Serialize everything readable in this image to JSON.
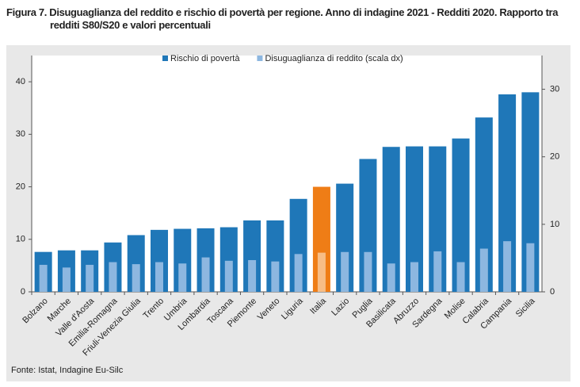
{
  "chart_data": {
    "type": "bar",
    "title": "Figura 7. Disuguaglianza del reddito e rischio di povertà per regione. Anno di indagine 2021 - Redditi 2020. Rapporto tra redditi S80/S20 e valori percentuali",
    "source": "Fonte: Istat, Indagine Eu-Silc",
    "categories": [
      "Bolzano",
      "Marche",
      "Valle d'Aosta",
      "Emilia-Romagna",
      "Friuli-Venezia Giulia",
      "Trento",
      "Umbria",
      "Lombardia",
      "Toscana",
      "Piemonte",
      "Veneto",
      "Liguria",
      "Italia",
      "Lazio",
      "Puglia",
      "Basilicata",
      "Abruzzo",
      "Sardegna",
      "Molise",
      "Calabria",
      "Campania",
      "Sicilia"
    ],
    "series": [
      {
        "name": "Rischio di povertà",
        "color": "#1f77b8",
        "colors": [
          "#1f77b8",
          "#1f77b8",
          "#1f77b8",
          "#1f77b8",
          "#1f77b8",
          "#1f77b8",
          "#1f77b8",
          "#1f77b8",
          "#1f77b8",
          "#1f77b8",
          "#1f77b8",
          "#1f77b8",
          "#ef7d16",
          "#1f77b8",
          "#1f77b8",
          "#1f77b8",
          "#1f77b8",
          "#1f77b8",
          "#1f77b8",
          "#1f77b8",
          "#1f77b8",
          "#1f77b8"
        ],
        "values": [
          7.6,
          7.9,
          7.9,
          9.4,
          10.8,
          11.8,
          12.0,
          12.1,
          12.3,
          13.6,
          13.6,
          17.7,
          20.0,
          20.6,
          25.3,
          27.6,
          27.7,
          27.7,
          29.2,
          33.2,
          37.6,
          38.0
        ]
      },
      {
        "name": "Disuguaglianza di reddito (scala dx)",
        "color": "#8db7e0",
        "axis": "y2",
        "colors": [
          "#8db7e0",
          "#8db7e0",
          "#8db7e0",
          "#8db7e0",
          "#8db7e0",
          "#8db7e0",
          "#8db7e0",
          "#8db7e0",
          "#8db7e0",
          "#8db7e0",
          "#8db7e0",
          "#8db7e0",
          "#f7bd86",
          "#8db7e0",
          "#8db7e0",
          "#8db7e0",
          "#8db7e0",
          "#8db7e0",
          "#8db7e0",
          "#8db7e0",
          "#8db7e0",
          "#8db7e0"
        ],
        "values": [
          4.0,
          3.6,
          4.0,
          4.4,
          4.1,
          4.4,
          4.2,
          5.1,
          4.6,
          4.7,
          4.5,
          5.6,
          5.8,
          5.9,
          5.9,
          4.2,
          4.4,
          6.0,
          4.4,
          6.4,
          7.5,
          7.2
        ]
      }
    ],
    "ylim": [
      0,
      45
    ],
    "yticks": [
      0,
      10,
      20,
      30,
      40
    ],
    "y2lim": [
      0,
      35
    ],
    "y2ticks": [
      0,
      10,
      20,
      30
    ],
    "grid": false,
    "legend": "top"
  }
}
